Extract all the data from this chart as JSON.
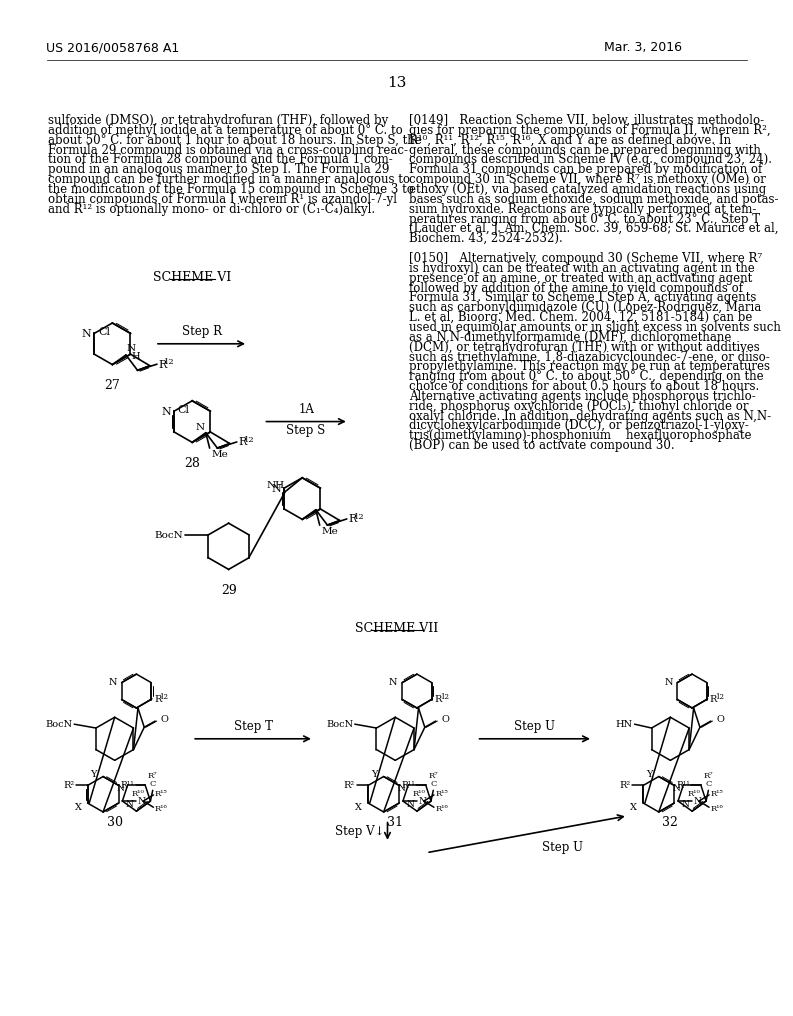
{
  "page_number": "13",
  "patent_number": "US 2016/0058768 A1",
  "patent_date": "Mar. 3, 2016",
  "background_color": "#ffffff",
  "left_col": [
    "sulfoxide (DMSO), or tetrahydrofuran (THF), followed by",
    "addition of methyl iodide at a temperature of about 0° C. to",
    "about 50° C. for about 1 hour to about 18 hours. In Step S, the",
    "Formula 29 compound is obtained via a cross-coupling reac-",
    "tion of the Formula 28 compound and the Formula 1 com-",
    "pound in an analogous manner to Step I. The Formula 29",
    "compound can be further modified in a manner analogous to",
    "the modification of the Formula 15 compound in Scheme 3 to",
    "obtain compounds of Formula I wherein R¹ is azaindol-7-yl",
    "and R¹² is optionally mono- or di-chloro or (C₁-C₄)alkyl."
  ],
  "right_col": [
    "[0149]   Reaction Scheme VII, below, illustrates methodolo-",
    "gies for preparing the compounds of Formula II, wherein R²,",
    "R¹⁰, R¹¹, R¹², R¹⁵, R¹⁶, X and Y are as defined above. In",
    "general, these compounds can be prepared beginning with",
    "compounds described in Scheme IV (e.g., compound 23, 24).",
    "Formula 31 compounds can be prepared by modification of",
    "compound 30 in Scheme VII, where R⁷ is methoxy (OMe) or",
    "ethoxy (OEt), via based catalyzed amidation reactions using",
    "bases such as sodium ethoxide, sodium methoxide, and potas-",
    "sium hydroxide. Reactions are typically performed at tem-",
    "peratures ranging from about 0° C. to about 23° C., Step T",
    "(Lauder et al, J. Am. Chem. Soc. 39, 659-68; St. Maurice et al,",
    "Biochem. 43, 2524-2532).",
    "",
    "[0150]   Alternatively, compound 30 (Scheme VII, where R⁷",
    "is hydroxyl) can be treated with an activating agent in the",
    "presence of an amine, or treated with an activating agent",
    "followed by addition of the amine to yield compounds of",
    "Formula 31. Similar to Scheme I Step A, activating agents",
    "such as carbonyldiimidazole (CU) (Lopez-Rodriguez, Maria",
    "L. et al, Bioorg. Med. Chem. 2004, 12, 5181-5184) can be",
    "used in equimolar amounts or in slight excess in solvents such",
    "as a N,N-dimethylformamide (DMF), dichloromethane",
    "(DCM), or tetrahydrofuran (THF) with or without additives",
    "such as triethylamine, 1,8-diazabicycloundec-7-ene, or diiso-",
    "propylethylamine. This reaction may be run at temperatures",
    "ranging from about 0° C. to about 50° C., depending on the",
    "choice of conditions for about 0.5 hours to about 18 hours.",
    "Alternative activating agents include phosphorous trichlo-",
    "ride, phosphorus oxychloride (POCl₃), thionyl chloride or",
    "oxalyl chloride. In addition, dehydrating agents such as N,N-",
    "dicyclohexylcarbodiimide (DCC), or benzotriazol-1-yloxy-",
    "tris(dimethylamino)-phosphonium    hexafluorophosphate",
    "(BOP) can be used to activate compound 30."
  ]
}
